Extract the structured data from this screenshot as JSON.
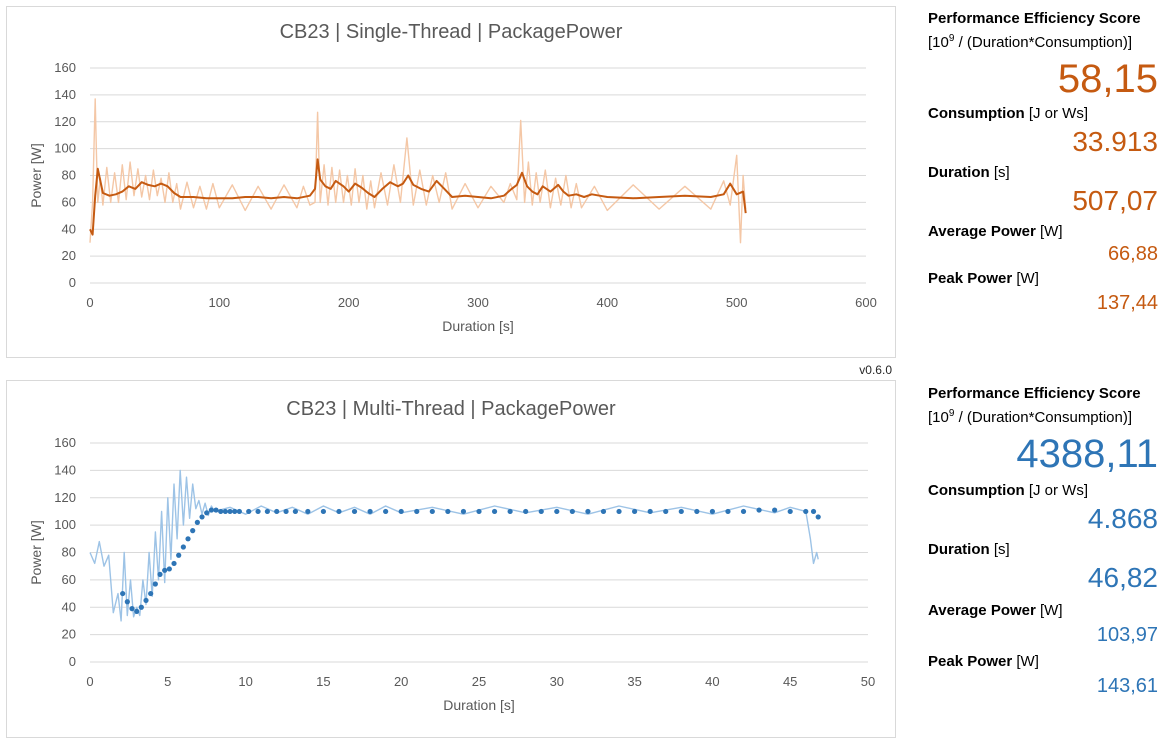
{
  "version": "v0.6.0",
  "colors": {
    "st_main": "#c55a11",
    "st_light": "#f4c7a6",
    "mt_main": "#2e75b6",
    "mt_light": "#9dc3e6",
    "grid": "#d9d9d9",
    "axis_text": "#595959"
  },
  "st_stats": {
    "score_label": "Performance Efficiency Score",
    "score_unit_pre": "[10",
    "score_unit_sup": "9",
    "score_unit_post": " / (Duration*Consumption)]",
    "score": "58,15",
    "consumption_label": "Consumption",
    "consumption_unit": " [J or Ws]",
    "consumption": "33.913",
    "duration_label": "Duration",
    "duration_unit": " [s]",
    "duration": "507,07",
    "avg_label": "Average Power",
    "avg_unit": " [W]",
    "avg": "66,88",
    "peak_label": "Peak Power",
    "peak_unit": " [W]",
    "peak": "137,44"
  },
  "mt_stats": {
    "score_label": "Performance Efficiency Score",
    "score_unit_pre": "[10",
    "score_unit_sup": "9",
    "score_unit_post": " / (Duration*Consumption)]",
    "score": "4388,11",
    "consumption_label": "Consumption",
    "consumption_unit": " [J or Ws]",
    "consumption": "4.868",
    "duration_label": "Duration",
    "duration_unit": " [s]",
    "duration": "46,82",
    "avg_label": "Average Power",
    "avg_unit": " [W]",
    "avg": "103,97",
    "peak_label": "Peak Power",
    "peak_unit": " [W]",
    "peak": "143,61"
  },
  "chart_data": [
    {
      "type": "line",
      "title": "CB23 | Single-Thread | PackagePower",
      "xlabel": "Duration [s]",
      "ylabel": "Power [W]",
      "xlim": [
        0,
        600
      ],
      "ylim": [
        0,
        160
      ],
      "xticks": [
        0,
        100,
        200,
        300,
        400,
        500,
        600
      ],
      "yticks": [
        0,
        20,
        40,
        60,
        80,
        100,
        120,
        140,
        160
      ],
      "grid": true,
      "series": [
        {
          "style": "smoothed-line",
          "x": [
            0,
            2,
            4,
            6,
            10,
            15,
            20,
            25,
            30,
            35,
            40,
            45,
            50,
            55,
            60,
            65,
            70,
            80,
            90,
            100,
            110,
            120,
            130,
            140,
            150,
            160,
            170,
            174,
            176,
            178,
            182,
            186,
            190,
            196,
            200,
            205,
            210,
            215,
            220,
            226,
            232,
            238,
            242,
            246,
            250,
            256,
            262,
            268,
            274,
            280,
            290,
            300,
            310,
            320,
            326,
            330,
            334,
            338,
            342,
            346,
            350,
            356,
            362,
            366,
            370,
            376,
            382,
            388,
            394,
            400,
            420,
            440,
            460,
            480,
            490,
            495,
            500,
            505,
            507
          ],
          "y": [
            40,
            36,
            65,
            85,
            67,
            65,
            66,
            68,
            72,
            70,
            75,
            73,
            72,
            74,
            72,
            67,
            64,
            64,
            63,
            63,
            63,
            64,
            64,
            63,
            64,
            63,
            65,
            70,
            92,
            77,
            72,
            70,
            76,
            72,
            68,
            74,
            71,
            67,
            64,
            70,
            75,
            72,
            74,
            80,
            73,
            70,
            68,
            76,
            70,
            64,
            65,
            64,
            63,
            65,
            70,
            73,
            82,
            72,
            68,
            66,
            72,
            68,
            73,
            68,
            65,
            66,
            64,
            66,
            65,
            64,
            63,
            64,
            65,
            64,
            66,
            74,
            66,
            68,
            52
          ]
        },
        {
          "style": "raw-line",
          "x": [
            0,
            2,
            4,
            5,
            6,
            8,
            10,
            13,
            16,
            19,
            22,
            25,
            28,
            31,
            34,
            37,
            40,
            43,
            46,
            49,
            52,
            55,
            58,
            61,
            64,
            67,
            70,
            75,
            80,
            85,
            90,
            95,
            100,
            110,
            120,
            130,
            140,
            150,
            160,
            165,
            170,
            174,
            176,
            178,
            181,
            184,
            187,
            190,
            193,
            196,
            199,
            202,
            205,
            208,
            211,
            214,
            217,
            220,
            225,
            230,
            235,
            240,
            245,
            250,
            255,
            260,
            265,
            270,
            275,
            280,
            290,
            300,
            310,
            320,
            325,
            330,
            333,
            336,
            339,
            342,
            345,
            348,
            352,
            356,
            360,
            364,
            368,
            372,
            376,
            380,
            390,
            400,
            420,
            440,
            460,
            480,
            490,
            495,
            500,
            503,
            505,
            507
          ],
          "y": [
            30,
            60,
            137,
            95,
            60,
            78,
            58,
            86,
            60,
            82,
            60,
            88,
            62,
            90,
            65,
            85,
            64,
            80,
            62,
            84,
            65,
            78,
            60,
            82,
            60,
            74,
            55,
            75,
            56,
            72,
            55,
            74,
            56,
            73,
            54,
            72,
            55,
            73,
            56,
            72,
            58,
            60,
            127,
            60,
            88,
            58,
            86,
            60,
            84,
            60,
            80,
            58,
            85,
            60,
            80,
            55,
            76,
            56,
            82,
            58,
            88,
            60,
            108,
            58,
            84,
            58,
            80,
            60,
            82,
            55,
            74,
            56,
            72,
            60,
            74,
            62,
            121,
            60,
            90,
            58,
            82,
            60,
            84,
            56,
            78,
            58,
            80,
            56,
            74,
            56,
            72,
            54,
            73,
            55,
            72,
            55,
            76,
            58,
            95,
            30,
            80,
            55
          ]
        }
      ]
    },
    {
      "type": "scatter",
      "title": "CB23 | Multi-Thread | PackagePower",
      "xlabel": "Duration [s]",
      "ylabel": "Power [W]",
      "xlim": [
        0,
        50
      ],
      "ylim": [
        0,
        160
      ],
      "xticks": [
        0,
        5,
        10,
        15,
        20,
        25,
        30,
        35,
        40,
        45,
        50
      ],
      "yticks": [
        0,
        20,
        40,
        60,
        80,
        100,
        120,
        140,
        160
      ],
      "grid": true,
      "series": [
        {
          "style": "points",
          "x": [
            2.1,
            2.4,
            2.7,
            3.0,
            3.3,
            3.6,
            3.9,
            4.2,
            4.5,
            4.8,
            5.1,
            5.4,
            5.7,
            6.0,
            6.3,
            6.6,
            6.9,
            7.2,
            7.5,
            7.8,
            8.1,
            8.4,
            8.7,
            9.0,
            9.3,
            9.6,
            10.2,
            10.8,
            11.4,
            12.0,
            12.6,
            13.2,
            14.0,
            15.0,
            16.0,
            17.0,
            18.0,
            19.0,
            20.0,
            21.0,
            22.0,
            23.0,
            24.0,
            25.0,
            26.0,
            27.0,
            28.0,
            29.0,
            30.0,
            31.0,
            32.0,
            33.0,
            34.0,
            35.0,
            36.0,
            37.0,
            38.0,
            39.0,
            40.0,
            41.0,
            42.0,
            43.0,
            44.0,
            45.0,
            46.0,
            46.5,
            46.8
          ],
          "y": [
            50,
            44,
            39,
            37,
            40,
            45,
            50,
            57,
            64,
            67,
            68,
            72,
            78,
            84,
            90,
            96,
            102,
            106,
            109,
            111,
            111,
            110,
            110,
            110,
            110,
            110,
            110,
            110,
            110,
            110,
            110,
            110,
            110,
            110,
            110,
            110,
            110,
            110,
            110,
            110,
            110,
            110,
            110,
            110,
            110,
            110,
            110,
            110,
            110,
            110,
            110,
            110,
            110,
            110,
            110,
            110,
            110,
            110,
            110,
            110,
            110,
            111,
            111,
            110,
            110,
            110,
            106
          ]
        },
        {
          "style": "raw-line",
          "x": [
            0,
            0.3,
            0.6,
            0.9,
            1.2,
            1.5,
            1.8,
            2.0,
            2.2,
            2.4,
            2.6,
            2.8,
            3.0,
            3.2,
            3.4,
            3.6,
            3.8,
            4.0,
            4.2,
            4.4,
            4.6,
            4.8,
            5.0,
            5.2,
            5.4,
            5.6,
            5.8,
            6.0,
            6.2,
            6.4,
            6.6,
            6.8,
            7.0,
            7.2,
            7.4,
            7.6,
            7.8,
            8.0,
            9.0,
            10.0,
            11.0,
            12.0,
            13.0,
            14.0,
            15.0,
            16.0,
            17.0,
            18.0,
            19.0,
            20.0,
            22.0,
            24.0,
            26.0,
            28.0,
            30.0,
            32.0,
            34.0,
            36.0,
            38.0,
            40.0,
            42.0,
            44.0,
            45.0,
            46.0,
            46.3,
            46.5,
            46.7,
            46.8
          ],
          "y": [
            80,
            72,
            88,
            70,
            78,
            36,
            50,
            30,
            80,
            34,
            60,
            33,
            40,
            34,
            60,
            42,
            80,
            48,
            95,
            60,
            110,
            58,
            120,
            75,
            130,
            90,
            140,
            100,
            135,
            105,
            130,
            112,
            118,
            108,
            116,
            107,
            114,
            110,
            113,
            108,
            114,
            109,
            113,
            108,
            114,
            109,
            113,
            108,
            114,
            109,
            113,
            108,
            114,
            109,
            113,
            108,
            114,
            109,
            113,
            108,
            114,
            109,
            113,
            110,
            90,
            72,
            80,
            75
          ]
        }
      ]
    }
  ]
}
